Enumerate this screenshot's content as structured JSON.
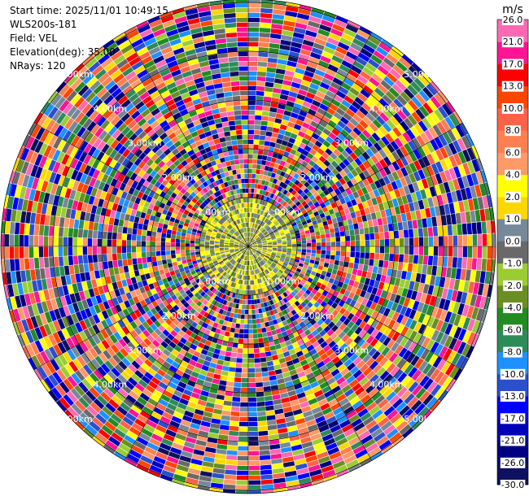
{
  "header": {
    "start_time": "Start time: 2025/11/01 10:49:15",
    "instrument": "WLS200s-181",
    "field": "Field: VEL",
    "elevation": "Elevation(deg): 35.00",
    "nrays": "NRays: 120"
  },
  "chart_data": {
    "type": "ppi",
    "field": "VEL",
    "units": "m/s",
    "n_rays": 120,
    "elevation_deg": 35.0,
    "range_rings_km": [
      1,
      2,
      3,
      4,
      5
    ],
    "range_ring_labels": [
      "1.00km",
      "2.00km",
      "3.00km",
      "4.00km",
      "5.00km"
    ],
    "colorbar": {
      "unit_label": "m/s",
      "levels": [
        -30.0,
        -26.0,
        -21.0,
        -17.0,
        -13.0,
        -10.0,
        -8.0,
        -6.0,
        -4.0,
        -2.0,
        -1.0,
        0.0,
        1.0,
        2.0,
        4.0,
        6.0,
        8.0,
        10.0,
        13.0,
        17.0,
        21.0,
        26.0
      ],
      "tick_labels": [
        "-30.0",
        "-26.0",
        "-21.0",
        "-17.0",
        "-13.0",
        "-10.0",
        "-8.0",
        "-6.0",
        "-4.0",
        "-2.0",
        "-1.0",
        "0.0",
        "1.0",
        "2.0",
        "4.0",
        "6.0",
        "8.0",
        "10.0",
        "13.0",
        "17.0",
        "21.0",
        "26.0"
      ],
      "colors": [
        "#101060",
        "#000080",
        "#0000b8",
        "#0000ff",
        "#2a4fd0",
        "#1e90ff",
        "#2e8b57",
        "#228b22",
        "#6b8e23",
        "#9acd32",
        "#696969",
        "#778899",
        "#ffd700",
        "#ffff00",
        "#ff9966",
        "#ff7f50",
        "#ff6347",
        "#ff4500",
        "#ff0000",
        "#ff1493",
        "#ff69b4"
      ]
    }
  }
}
